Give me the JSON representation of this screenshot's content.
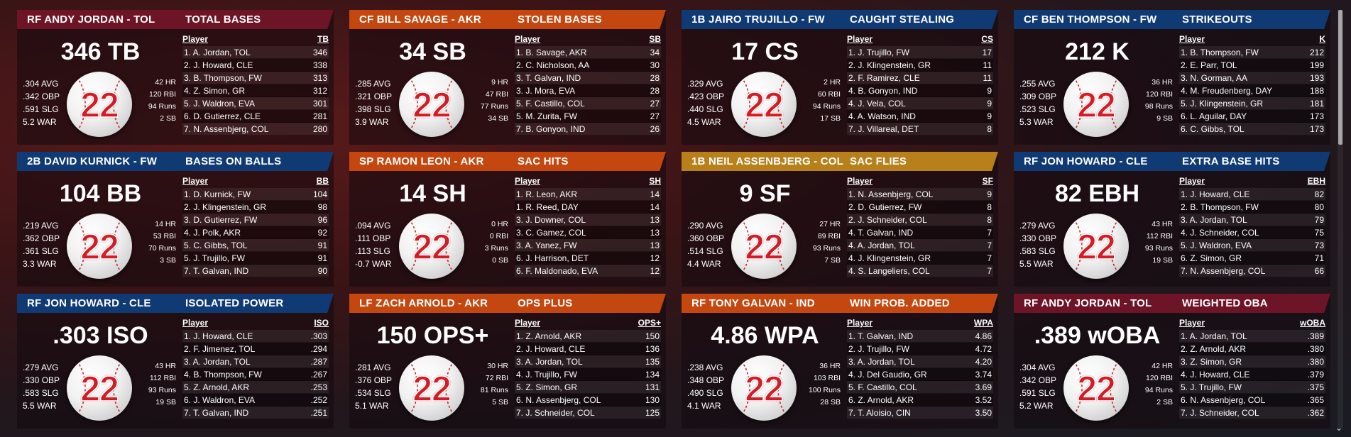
{
  "colors": {
    "maroon": "#6e1427",
    "orange": "#c4470f",
    "navy": "#0f3a74",
    "gold": "#b8801a"
  },
  "ball_number": "22",
  "cards": [
    {
      "header_color": "#6e1427",
      "player": "RF ANDY JORDAN - TOL",
      "category": "TOTAL BASES",
      "big": "346 TB",
      "left_stats": [
        ".304 AVG",
        ".342 OBP",
        ".591 SLG",
        "5.2 WAR"
      ],
      "right_stats": [
        "42 HR",
        "120 RBI",
        "94 Runs",
        "2 SB"
      ],
      "col_player": "Player",
      "col_stat": "TB",
      "rows": [
        {
          "name": "1. A. Jordan, TOL",
          "value": "346"
        },
        {
          "name": "2. J. Howard, CLE",
          "value": "338"
        },
        {
          "name": "3. B. Thompson, FW",
          "value": "313"
        },
        {
          "name": "4. Z. Simon, GR",
          "value": "312"
        },
        {
          "name": "5. J. Waldron, EVA",
          "value": "301"
        },
        {
          "name": "6. D. Gutierrez, CLE",
          "value": "281"
        },
        {
          "name": "7. N. Assenbjerg, COL",
          "value": "280"
        }
      ]
    },
    {
      "header_color": "#c4470f",
      "player": "CF BILL SAVAGE - AKR",
      "category": "STOLEN BASES",
      "big": "34 SB",
      "left_stats": [
        ".285 AVG",
        ".321 OBP",
        ".398 SLG",
        "3.9 WAR"
      ],
      "right_stats": [
        "9 HR",
        "47 RBI",
        "77 Runs",
        "34 SB"
      ],
      "col_player": "Player",
      "col_stat": "SB",
      "rows": [
        {
          "name": "1. B. Savage, AKR",
          "value": "34"
        },
        {
          "name": "2. C. Nicholson, AA",
          "value": "30"
        },
        {
          "name": "3. T. Galvan, IND",
          "value": "28"
        },
        {
          "name": "3. J. Mora, EVA",
          "value": "28"
        },
        {
          "name": "5. F. Castillo, COL",
          "value": "27"
        },
        {
          "name": "5. M. Zurita, FW",
          "value": "27"
        },
        {
          "name": "7. B. Gonyon, IND",
          "value": "26"
        }
      ]
    },
    {
      "header_color": "#0f3a74",
      "player": "1B JAIRO TRUJILLO - FW",
      "category": "CAUGHT STEALING",
      "big": "17 CS",
      "left_stats": [
        ".329 AVG",
        ".423 OBP",
        ".440 SLG",
        "4.5 WAR"
      ],
      "right_stats": [
        "2 HR",
        "60 RBI",
        "94 Runs",
        "17 SB"
      ],
      "col_player": "Player",
      "col_stat": "CS",
      "rows": [
        {
          "name": "1. J. Trujillo, FW",
          "value": "17"
        },
        {
          "name": "2. J. Klingenstein, GR",
          "value": "11"
        },
        {
          "name": "2. F. Ramirez, CLE",
          "value": "11"
        },
        {
          "name": "4. B. Gonyon, IND",
          "value": "9"
        },
        {
          "name": "4. J. Vela, COL",
          "value": "9"
        },
        {
          "name": "4. A. Watson, IND",
          "value": "9"
        },
        {
          "name": "7. J. Villareal, DET",
          "value": "8"
        }
      ]
    },
    {
      "header_color": "#0f3a74",
      "player": "CF BEN THOMPSON - FW",
      "category": "STRIKEOUTS",
      "big": "212 K",
      "left_stats": [
        ".255 AVG",
        ".309 OBP",
        ".523 SLG",
        "5.3 WAR"
      ],
      "right_stats": [
        "36 HR",
        "120 RBI",
        "98 Runs",
        "9 SB"
      ],
      "col_player": "Player",
      "col_stat": "K",
      "rows": [
        {
          "name": "1. B. Thompson, FW",
          "value": "212"
        },
        {
          "name": "2. E. Parr, TOL",
          "value": "199"
        },
        {
          "name": "3. N. Gorman, AA",
          "value": "193"
        },
        {
          "name": "4. M. Freudenberg, DAY",
          "value": "188"
        },
        {
          "name": "5. J. Klingenstein, GR",
          "value": "181"
        },
        {
          "name": "6. L. Aguilar, DAY",
          "value": "173"
        },
        {
          "name": "6. C. Gibbs, TOL",
          "value": "173"
        }
      ]
    },
    {
      "header_color": "#0f3a74",
      "player": "2B DAVID KURNICK - FW",
      "category": "BASES ON BALLS",
      "big": "104 BB",
      "left_stats": [
        ".219 AVG",
        ".362 OBP",
        ".361 SLG",
        "3.3 WAR"
      ],
      "right_stats": [
        "14 HR",
        "53 RBI",
        "70 Runs",
        "3 SB"
      ],
      "col_player": "Player",
      "col_stat": "BB",
      "rows": [
        {
          "name": "1. D. Kurnick, FW",
          "value": "104"
        },
        {
          "name": "2. J. Klingenstein, GR",
          "value": "98"
        },
        {
          "name": "3. D. Gutierrez, FW",
          "value": "96"
        },
        {
          "name": "4. J. Polk, AKR",
          "value": "92"
        },
        {
          "name": "5. C. Gibbs, TOL",
          "value": "91"
        },
        {
          "name": "5. J. Trujillo, FW",
          "value": "91"
        },
        {
          "name": "7. T. Galvan, IND",
          "value": "90"
        }
      ]
    },
    {
      "header_color": "#c4470f",
      "player": "SP RAMON LEON - AKR",
      "category": "SAC HITS",
      "big": "14 SH",
      "left_stats": [
        ".094 AVG",
        ".111 OBP",
        ".113 SLG",
        "-0.7 WAR"
      ],
      "right_stats": [
        "0 HR",
        "0 RBI",
        "3 Runs",
        "0 SB"
      ],
      "col_player": "Player",
      "col_stat": "SH",
      "rows": [
        {
          "name": "1. R. Leon, AKR",
          "value": "14"
        },
        {
          "name": "1. R. Reed, DAY",
          "value": "14"
        },
        {
          "name": "3. J. Downer, COL",
          "value": "13"
        },
        {
          "name": "3. C. Gamez, COL",
          "value": "13"
        },
        {
          "name": "3. A. Yanez, FW",
          "value": "13"
        },
        {
          "name": "6. J. Harrison, DET",
          "value": "12"
        },
        {
          "name": "6. F. Maldonado, EVA",
          "value": "12"
        }
      ]
    },
    {
      "header_color": "#b8801a",
      "player": "1B NEIL ASSENBJERG - COL",
      "category": "SAC FLIES",
      "big": "9 SF",
      "left_stats": [
        ".290 AVG",
        ".360 OBP",
        ".514 SLG",
        "4.4 WAR"
      ],
      "right_stats": [
        "27 HR",
        "89 RBI",
        "93 Runs",
        "7 SB"
      ],
      "col_player": "Player",
      "col_stat": "SF",
      "rows": [
        {
          "name": "1. N. Assenbjerg, COL",
          "value": "9"
        },
        {
          "name": "2. D. Gutierrez, FW",
          "value": "8"
        },
        {
          "name": "2. J. Schneider, COL",
          "value": "8"
        },
        {
          "name": "4. T. Galvan, IND",
          "value": "7"
        },
        {
          "name": "4. A. Jordan, TOL",
          "value": "7"
        },
        {
          "name": "4. J. Klingenstein, GR",
          "value": "7"
        },
        {
          "name": "4. S. Langeliers, COL",
          "value": "7"
        }
      ]
    },
    {
      "header_color": "#0f3a74",
      "player": "RF JON HOWARD - CLE",
      "category": "EXTRA BASE HITS",
      "big": "82 EBH",
      "left_stats": [
        ".279 AVG",
        ".330 OBP",
        ".583 SLG",
        "5.5 WAR"
      ],
      "right_stats": [
        "43 HR",
        "112 RBI",
        "93 Runs",
        "19 SB"
      ],
      "col_player": "Player",
      "col_stat": "EBH",
      "rows": [
        {
          "name": "1. J. Howard, CLE",
          "value": "82"
        },
        {
          "name": "2. B. Thompson, FW",
          "value": "80"
        },
        {
          "name": "3. A. Jordan, TOL",
          "value": "79"
        },
        {
          "name": "4. J. Schneider, COL",
          "value": "75"
        },
        {
          "name": "5. J. Waldron, EVA",
          "value": "73"
        },
        {
          "name": "6. Z. Simon, GR",
          "value": "71"
        },
        {
          "name": "7. N. Assenbjerg, COL",
          "value": "66"
        }
      ]
    },
    {
      "header_color": "#0f3a74",
      "player": "RF JON HOWARD - CLE",
      "category": "ISOLATED POWER",
      "big": ".303 ISO",
      "left_stats": [
        ".279 AVG",
        ".330 OBP",
        ".583 SLG",
        "5.5 WAR"
      ],
      "right_stats": [
        "43 HR",
        "112 RBI",
        "93 Runs",
        "19 SB"
      ],
      "col_player": "Player",
      "col_stat": "ISO",
      "rows": [
        {
          "name": "1. J. Howard, CLE",
          "value": ".303"
        },
        {
          "name": "2. F. Jimenez, TOL",
          "value": ".294"
        },
        {
          "name": "3. A. Jordan, TOL",
          "value": ".287"
        },
        {
          "name": "4. B. Thompson, FW",
          "value": ".267"
        },
        {
          "name": "5. Z. Arnold, AKR",
          "value": ".253"
        },
        {
          "name": "6. J. Waldron, EVA",
          "value": ".252"
        },
        {
          "name": "7. T. Galvan, IND",
          "value": ".251"
        }
      ]
    },
    {
      "header_color": "#c4470f",
      "player": "LF ZACH ARNOLD - AKR",
      "category": "OPS PLUS",
      "big": "150 OPS+",
      "left_stats": [
        ".281 AVG",
        ".376 OBP",
        ".534 SLG",
        "5.1 WAR"
      ],
      "right_stats": [
        "30 HR",
        "72 RBI",
        "81 Runs",
        "5 SB"
      ],
      "col_player": "Player",
      "col_stat": "OPS+",
      "rows": [
        {
          "name": "1. Z. Arnold, AKR",
          "value": "150"
        },
        {
          "name": "2. J. Howard, CLE",
          "value": "136"
        },
        {
          "name": "3. A. Jordan, TOL",
          "value": "135"
        },
        {
          "name": "4. J. Trujillo, FW",
          "value": "134"
        },
        {
          "name": "5. Z. Simon, GR",
          "value": "131"
        },
        {
          "name": "6. N. Assenbjerg, COL",
          "value": "130"
        },
        {
          "name": "7. J. Schneider, COL",
          "value": "125"
        }
      ]
    },
    {
      "header_color": "#c4470f",
      "player": "RF TONY GALVAN - IND",
      "category": "WIN PROB. ADDED",
      "big": "4.86 WPA",
      "left_stats": [
        ".238 AVG",
        ".348 OBP",
        ".490 SLG",
        "4.1 WAR"
      ],
      "right_stats": [
        "36 HR",
        "103 RBI",
        "100 Runs",
        "28 SB"
      ],
      "col_player": "Player",
      "col_stat": "WPA",
      "rows": [
        {
          "name": "1. T. Galvan, IND",
          "value": "4.86"
        },
        {
          "name": "2. J. Trujillo, FW",
          "value": "4.72"
        },
        {
          "name": "3. A. Jordan, TOL",
          "value": "4.20"
        },
        {
          "name": "4. J. Del Gaudio, GR",
          "value": "3.74"
        },
        {
          "name": "5. F. Castillo, COL",
          "value": "3.69"
        },
        {
          "name": "6. Z. Arnold, AKR",
          "value": "3.52"
        },
        {
          "name": "7. T. Aloisio, CIN",
          "value": "3.50"
        }
      ]
    },
    {
      "header_color": "#6e1427",
      "player": "RF ANDY JORDAN - TOL",
      "category": "WEIGHTED OBA",
      "big": ".389 wOBA",
      "left_stats": [
        ".304 AVG",
        ".342 OBP",
        ".591 SLG",
        "5.2 WAR"
      ],
      "right_stats": [
        "42 HR",
        "120 RBI",
        "94 Runs",
        "2 SB"
      ],
      "col_player": "Player",
      "col_stat": "wOBA",
      "rows": [
        {
          "name": "1. A. Jordan, TOL",
          "value": ".389"
        },
        {
          "name": "2. Z. Arnold, AKR",
          "value": ".380"
        },
        {
          "name": "3. Z. Simon, GR",
          "value": ".380"
        },
        {
          "name": "4. J. Howard, CLE",
          "value": ".379"
        },
        {
          "name": "5. J. Trujillo, FW",
          "value": ".375"
        },
        {
          "name": "6. N. Assenbjerg, COL",
          "value": ".365"
        },
        {
          "name": "7. J. Schneider, COL",
          "value": ".362"
        }
      ]
    }
  ],
  "scroll_down_glyph": "⌄"
}
